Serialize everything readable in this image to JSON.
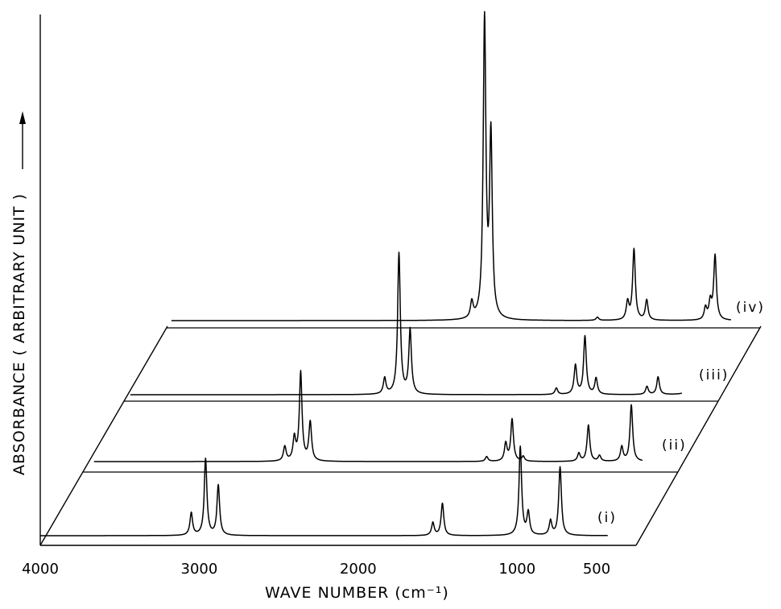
{
  "chart_data": {
    "type": "line",
    "xlabel": "WAVE NUMBER (cm⁻¹)",
    "ylabel": "ABSORBANCE ( ARBITRARY UNIT )",
    "xlim": [
      4000,
      400
    ],
    "x_ticks": [
      4000,
      3000,
      2000,
      1000,
      500
    ],
    "x_tick_labels": [
      "4000",
      "3000",
      "2000",
      "1000",
      "500"
    ],
    "y_ticks_shown": false,
    "grid": false,
    "legend": "none",
    "series": [
      {
        "name": "(i)",
        "peaks": [
          {
            "x": 3050,
            "height": 28
          },
          {
            "x": 2960,
            "height": 95
          },
          {
            "x": 2880,
            "height": 62
          },
          {
            "x": 1530,
            "height": 16
          },
          {
            "x": 1470,
            "height": 40
          },
          {
            "x": 980,
            "height": 110
          },
          {
            "x": 930,
            "height": 28
          },
          {
            "x": 790,
            "height": 18
          },
          {
            "x": 730,
            "height": 85
          }
        ]
      },
      {
        "name": "(ii)",
        "peaks": [
          {
            "x": 2720,
            "height": 18
          },
          {
            "x": 2660,
            "height": 28
          },
          {
            "x": 2620,
            "height": 110
          },
          {
            "x": 2560,
            "height": 48
          },
          {
            "x": 1450,
            "height": 6
          },
          {
            "x": 1330,
            "height": 22
          },
          {
            "x": 1290,
            "height": 52
          },
          {
            "x": 1220,
            "height": 6
          },
          {
            "x": 870,
            "height": 10
          },
          {
            "x": 810,
            "height": 45
          },
          {
            "x": 740,
            "height": 7
          },
          {
            "x": 600,
            "height": 18
          },
          {
            "x": 540,
            "height": 70
          }
        ]
      },
      {
        "name": "(iii)",
        "peaks": [
          {
            "x": 2350,
            "height": 20
          },
          {
            "x": 2260,
            "height": 175
          },
          {
            "x": 2190,
            "height": 80
          },
          {
            "x": 1270,
            "height": 8
          },
          {
            "x": 1150,
            "height": 36
          },
          {
            "x": 1090,
            "height": 72
          },
          {
            "x": 1020,
            "height": 20
          },
          {
            "x": 700,
            "height": 10
          },
          {
            "x": 630,
            "height": 22
          },
          {
            "x": 430,
            "height": 22
          },
          {
            "x": 390,
            "height": 80
          }
        ]
      },
      {
        "name": "(iv)",
        "peaks": [
          {
            "x": 2060,
            "height": 20
          },
          {
            "x": 1980,
            "height": 370
          },
          {
            "x": 1940,
            "height": 225
          },
          {
            "x": 1270,
            "height": 4
          },
          {
            "x": 1080,
            "height": 22
          },
          {
            "x": 1040,
            "height": 88
          },
          {
            "x": 960,
            "height": 25
          },
          {
            "x": 590,
            "height": 15
          },
          {
            "x": 560,
            "height": 22
          },
          {
            "x": 530,
            "height": 80
          }
        ]
      }
    ]
  }
}
